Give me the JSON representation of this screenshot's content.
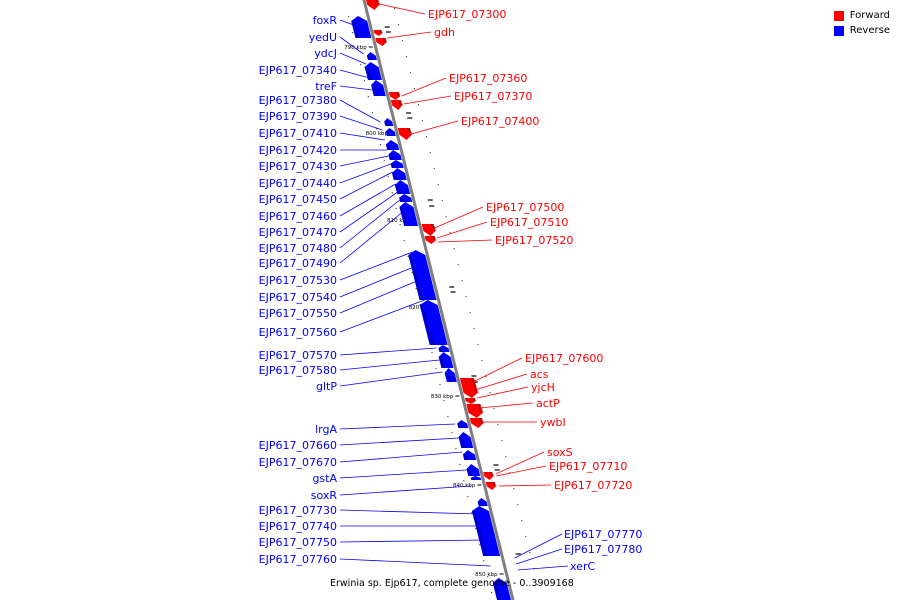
{
  "colors": {
    "forward": "#ff0000",
    "reverse": "#0000ff",
    "backbone": "#7f7f7f"
  },
  "legend": [
    {
      "label": "Forward",
      "color": "#ff0000"
    },
    {
      "label": "Reverse",
      "color": "#0000ff"
    }
  ],
  "caption": "Erwinia sp. Ejp617, complete genome - 0..3909168",
  "tick_labels": [
    "790 kbp",
    "800 kbp",
    "810 kbp",
    "820 kbp",
    "830 kbp",
    "840 kbp",
    "850 kbp"
  ],
  "reverse_genes": [
    "foxR",
    "yedU",
    "ydcJ",
    "EJP617_07340",
    "treF",
    "EJP617_07380",
    "EJP617_07390",
    "EJP617_07410",
    "EJP617_07420",
    "EJP617_07430",
    "EJP617_07440",
    "EJP617_07450",
    "EJP617_07460",
    "EJP617_07470",
    "EJP617_07480",
    "EJP617_07490",
    "EJP617_07530",
    "EJP617_07540",
    "EJP617_07550",
    "EJP617_07560",
    "EJP617_07570",
    "EJP617_07580",
    "gltP",
    "lrgA",
    "EJP617_07660",
    "EJP617_07670",
    "gstA",
    "soxR",
    "EJP617_07730",
    "EJP617_07740",
    "EJP617_07750",
    "EJP617_07760",
    "EJP617_07770",
    "EJP617_07780",
    "xerC"
  ],
  "forward_genes": [
    "EJP617_07300",
    "gdh",
    "EJP617_07360",
    "EJP617_07370",
    "EJP617_07400",
    "EJP617_07500",
    "EJP617_07510",
    "EJP617_07520",
    "EJP617_07600",
    "acs",
    "yjcH",
    "actP",
    "ywbI",
    "soxS",
    "EJP617_07710",
    "EJP617_07720"
  ]
}
